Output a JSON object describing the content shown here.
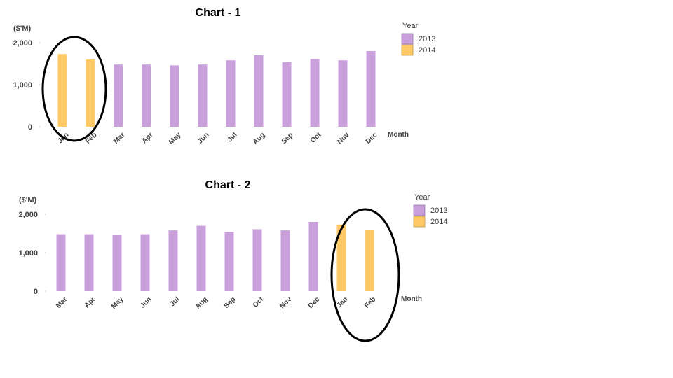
{
  "chart_data": [
    {
      "type": "bar",
      "title": "Chart - 1",
      "unit_label": "($'M)",
      "xlabel": "Month",
      "legend_title": "Year",
      "legend_placement": "top-right",
      "yticks": [
        "0",
        "1,000",
        "2,000"
      ],
      "ylim": [
        0,
        2000
      ],
      "categories": [
        "Jan",
        "Feb",
        "Mar",
        "Apr",
        "May",
        "Jun",
        "Jul",
        "Aug",
        "Sep",
        "Oct",
        "Nov",
        "Dec"
      ],
      "series": [
        {
          "name": "2013",
          "color": "#c9a0dc"
        },
        {
          "name": "2014",
          "color": "#ffca66"
        }
      ],
      "values": [
        1730,
        1600,
        1480,
        1480,
        1460,
        1480,
        1580,
        1700,
        1540,
        1610,
        1580,
        1800
      ],
      "bar_series": [
        "2014",
        "2014",
        "2013",
        "2013",
        "2013",
        "2013",
        "2013",
        "2013",
        "2013",
        "2013",
        "2013",
        "2013"
      ],
      "circled": [
        "Jan",
        "Feb"
      ]
    },
    {
      "type": "bar",
      "title": "Chart - 2",
      "unit_label": "($'M)",
      "xlabel": "Month",
      "legend_title": "Year",
      "legend_placement": "top-right",
      "yticks": [
        "0",
        "1,000",
        "2,000"
      ],
      "ylim": [
        0,
        2000
      ],
      "categories": [
        "Mar",
        "Apr",
        "May",
        "Jun",
        "Jul",
        "Aug",
        "Sep",
        "Oct",
        "Nov",
        "Dec",
        "Jan",
        "Feb"
      ],
      "series": [
        {
          "name": "2013",
          "color": "#c9a0dc"
        },
        {
          "name": "2014",
          "color": "#ffca66"
        }
      ],
      "values": [
        1480,
        1480,
        1460,
        1480,
        1580,
        1700,
        1540,
        1610,
        1580,
        1800,
        1730,
        1600
      ],
      "bar_series": [
        "2013",
        "2013",
        "2013",
        "2013",
        "2013",
        "2013",
        "2013",
        "2013",
        "2013",
        "2013",
        "2014",
        "2014"
      ],
      "circled": [
        "Jan",
        "Feb"
      ]
    }
  ]
}
